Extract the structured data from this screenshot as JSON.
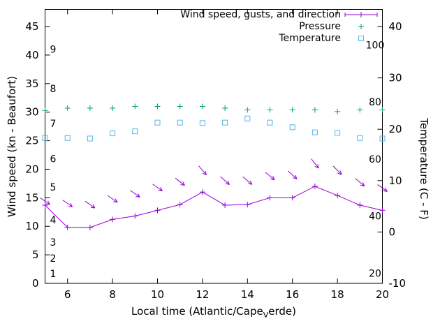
{
  "chart_data": {
    "type": "line",
    "title": "",
    "xlabel": {
      "prefix": "Local time (Atlantic/Cape",
      "subscript": "V",
      "suffix": "erde)"
    },
    "ylabel_left": "Wind speed (kn - Beaufort)",
    "ylabel_right": "Temperature (C - F)",
    "x_hours": [
      5,
      6,
      7,
      8,
      9,
      10,
      11,
      12,
      13,
      14,
      15,
      16,
      17,
      18,
      19,
      20
    ],
    "xlim": [
      5,
      20
    ],
    "ylim_left": [
      0,
      48
    ],
    "ylim_right_C": [
      -10,
      43.3
    ],
    "xticks": [
      6,
      8,
      10,
      12,
      14,
      16,
      18,
      20
    ],
    "yticks_left": [
      0,
      5,
      10,
      15,
      20,
      25,
      30,
      35,
      40,
      45
    ],
    "yticks_right": [
      -10,
      0,
      10,
      20,
      30,
      40
    ],
    "grid": false,
    "legend_position": "top right inside",
    "beaufort_scale_labels": [
      {
        "text": "1",
        "kn": 1.7
      },
      {
        "text": "2",
        "kn": 4.4
      },
      {
        "text": "3",
        "kn": 7.2
      },
      {
        "text": "4",
        "kn": 11.1
      },
      {
        "text": "5",
        "kn": 16.9
      },
      {
        "text": "6",
        "kn": 21.8
      },
      {
        "text": "7",
        "kn": 28.0
      },
      {
        "text": "8",
        "kn": 34.1
      },
      {
        "text": "9",
        "kn": 41.0
      }
    ],
    "fahrenheit_scale_labels": [
      {
        "text": "20",
        "f": 20
      },
      {
        "text": "40",
        "f": 40
      },
      {
        "text": "60",
        "f": 60
      },
      {
        "text": "80",
        "f": 80
      },
      {
        "text": "100",
        "f": 100
      }
    ],
    "series": [
      {
        "name": "Wind speed, gusts, and direction",
        "axis": "left",
        "color": "#9400d3",
        "style": "line+plus+arrows",
        "values": [
          13.7,
          9.8,
          9.8,
          11.2,
          11.8,
          12.8,
          13.8,
          16.0,
          13.7,
          13.8,
          15.0,
          15.0,
          17.0,
          15.4,
          13.7,
          12.8
        ],
        "gust_values": [
          14.4,
          14.0,
          13.8,
          14.8,
          15.7,
          16.8,
          17.8,
          19.8,
          18.0,
          18.0,
          18.8,
          19.0,
          21.0,
          19.8,
          17.7,
          16.7
        ],
        "gust_arrow_angles_deg": [
          35,
          35,
          35,
          35,
          35,
          35,
          38,
          50,
          42,
          40,
          40,
          42,
          52,
          46,
          40,
          36
        ]
      },
      {
        "name": "Pressure",
        "axis": "left",
        "color": "#009e73",
        "style": "plus",
        "values": [
          30.3,
          30.7,
          30.7,
          30.7,
          31.0,
          31.0,
          31.0,
          31.0,
          30.7,
          30.4,
          30.4,
          30.4,
          30.4,
          30.1,
          30.4,
          30.4
        ]
      },
      {
        "name": "Temperature",
        "axis": "right",
        "color": "#56b4e9",
        "style": "open-square",
        "values_C": [
          18.3,
          18.3,
          18.2,
          19.2,
          19.6,
          21.3,
          21.3,
          21.2,
          21.3,
          22.1,
          21.3,
          20.4,
          19.4,
          19.3,
          18.3,
          18.2
        ]
      }
    ],
    "colors": {
      "background": "#ffffff",
      "axes": "#000000"
    }
  }
}
